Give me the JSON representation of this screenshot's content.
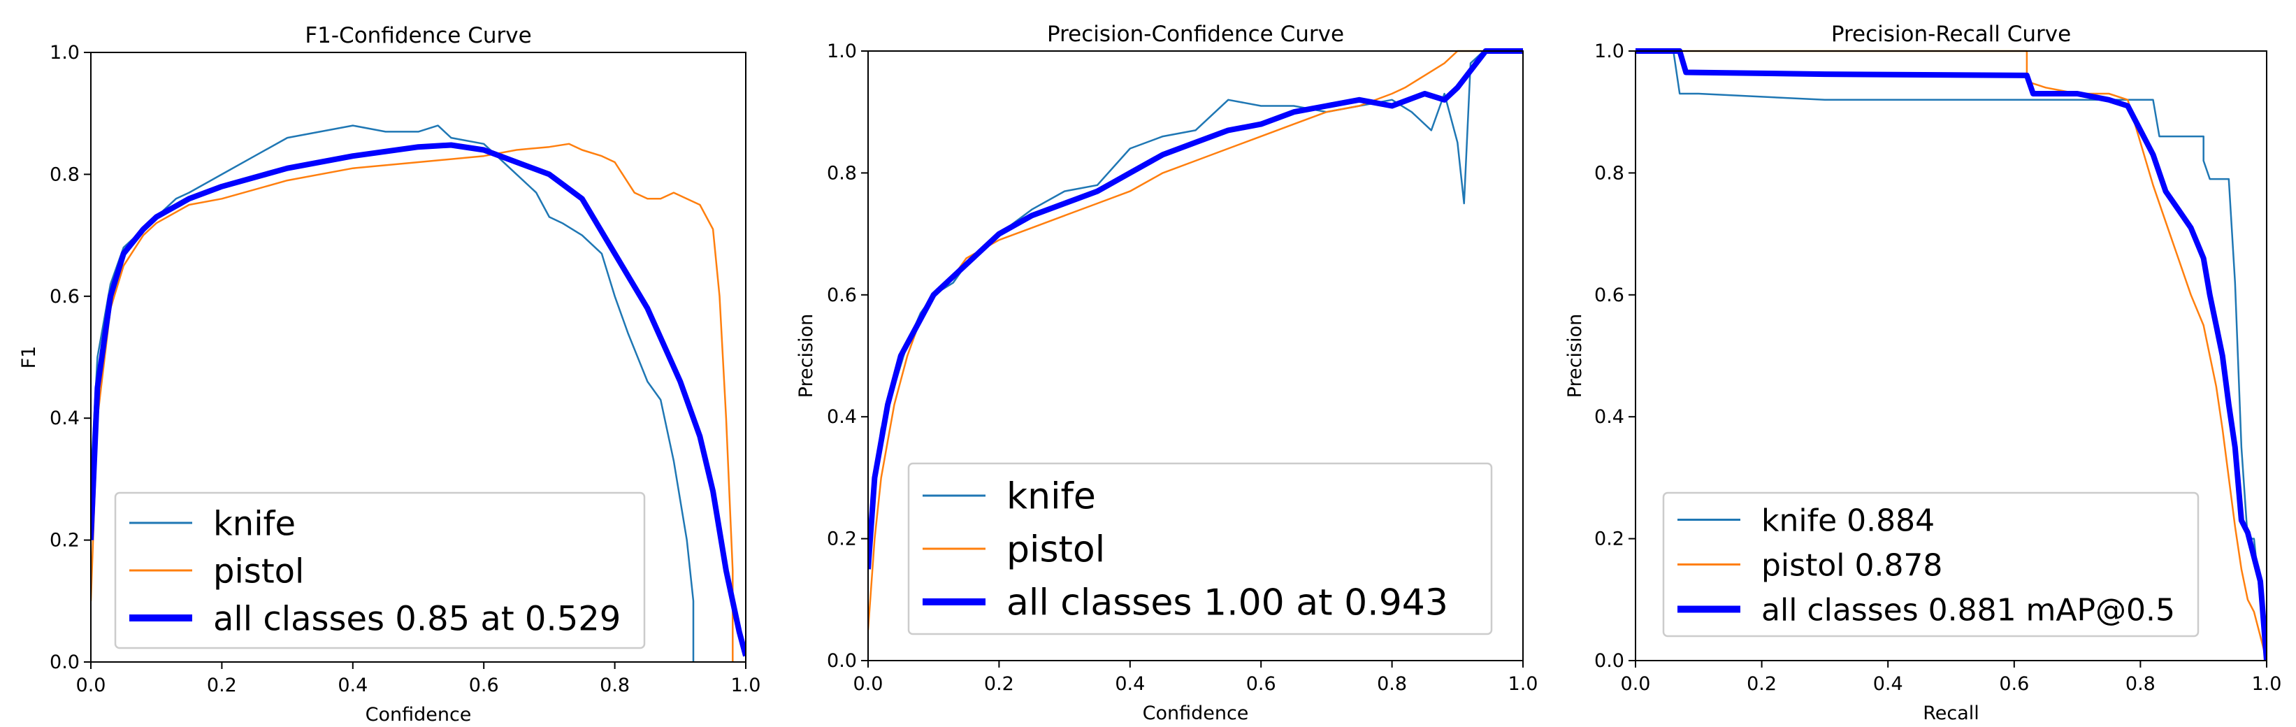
{
  "colors": {
    "knife": "#1f77b4",
    "pistol": "#ff7f0e",
    "all": "#0000ff",
    "axes": "#000000",
    "legend_border": "#cccccc"
  },
  "chart_data": [
    {
      "type": "line",
      "title": "F1-Confidence Curve",
      "xlabel": "Confidence",
      "ylabel": "F1",
      "xlim": [
        0,
        1
      ],
      "ylim": [
        0,
        1
      ],
      "xticks": [
        "0.0",
        "0.2",
        "0.4",
        "0.6",
        "0.8",
        "1.0"
      ],
      "yticks": [
        "0.0",
        "0.2",
        "0.4",
        "0.6",
        "0.8",
        "1.0"
      ],
      "grid": false,
      "legend_position": "lower-left",
      "series": [
        {
          "name": "knife",
          "color_key": "knife",
          "width": "thin",
          "x": [
            0,
            0.01,
            0.03,
            0.05,
            0.08,
            0.1,
            0.13,
            0.15,
            0.2,
            0.25,
            0.3,
            0.35,
            0.4,
            0.45,
            0.5,
            0.53,
            0.55,
            0.6,
            0.65,
            0.68,
            0.7,
            0.72,
            0.75,
            0.78,
            0.8,
            0.82,
            0.85,
            0.87,
            0.89,
            0.91,
            0.92,
            0.92
          ],
          "y": [
            0.3,
            0.5,
            0.62,
            0.68,
            0.71,
            0.73,
            0.76,
            0.77,
            0.8,
            0.83,
            0.86,
            0.87,
            0.88,
            0.87,
            0.87,
            0.88,
            0.86,
            0.85,
            0.8,
            0.77,
            0.73,
            0.72,
            0.7,
            0.67,
            0.6,
            0.54,
            0.46,
            0.43,
            0.33,
            0.2,
            0.1,
            0.0
          ]
        },
        {
          "name": "pistol",
          "color_key": "pistol",
          "width": "thin",
          "x": [
            0,
            0.01,
            0.03,
            0.05,
            0.08,
            0.1,
            0.15,
            0.2,
            0.3,
            0.4,
            0.5,
            0.6,
            0.65,
            0.7,
            0.73,
            0.75,
            0.78,
            0.8,
            0.83,
            0.85,
            0.87,
            0.89,
            0.93,
            0.95,
            0.96,
            0.97,
            0.98,
            0.98
          ],
          "y": [
            0.1,
            0.4,
            0.58,
            0.65,
            0.7,
            0.72,
            0.75,
            0.76,
            0.79,
            0.81,
            0.82,
            0.83,
            0.84,
            0.845,
            0.85,
            0.84,
            0.83,
            0.82,
            0.77,
            0.76,
            0.76,
            0.77,
            0.75,
            0.71,
            0.6,
            0.4,
            0.15,
            0.0
          ]
        },
        {
          "name": "all classes 0.85 at 0.529",
          "color_key": "all",
          "width": "thick",
          "x": [
            0,
            0.01,
            0.03,
            0.05,
            0.08,
            0.1,
            0.15,
            0.2,
            0.3,
            0.4,
            0.5,
            0.55,
            0.6,
            0.65,
            0.7,
            0.75,
            0.8,
            0.85,
            0.9,
            0.93,
            0.95,
            0.97,
            0.99,
            1.0
          ],
          "y": [
            0.2,
            0.45,
            0.6,
            0.67,
            0.71,
            0.73,
            0.76,
            0.78,
            0.81,
            0.83,
            0.845,
            0.848,
            0.84,
            0.82,
            0.8,
            0.76,
            0.67,
            0.58,
            0.46,
            0.37,
            0.28,
            0.15,
            0.05,
            0.01
          ]
        }
      ]
    },
    {
      "type": "line",
      "title": "Precision-Confidence Curve",
      "xlabel": "Confidence",
      "ylabel": "Precision",
      "xlim": [
        0,
        1
      ],
      "ylim": [
        0,
        1
      ],
      "xticks": [
        "0.0",
        "0.2",
        "0.4",
        "0.6",
        "0.8",
        "1.0"
      ],
      "yticks": [
        "0.0",
        "0.2",
        "0.4",
        "0.6",
        "0.8",
        "1.0"
      ],
      "grid": false,
      "legend_position": "lower-left",
      "series": [
        {
          "name": "knife",
          "color_key": "knife",
          "width": "thin",
          "x": [
            0,
            0.01,
            0.02,
            0.04,
            0.06,
            0.08,
            0.1,
            0.13,
            0.15,
            0.2,
            0.25,
            0.3,
            0.35,
            0.4,
            0.45,
            0.5,
            0.55,
            0.6,
            0.65,
            0.7,
            0.75,
            0.8,
            0.83,
            0.86,
            0.88,
            0.9,
            0.91,
            0.92,
            0.94,
            1.0
          ],
          "y": [
            0.15,
            0.3,
            0.38,
            0.45,
            0.52,
            0.57,
            0.6,
            0.62,
            0.65,
            0.7,
            0.74,
            0.77,
            0.78,
            0.84,
            0.86,
            0.87,
            0.92,
            0.91,
            0.91,
            0.9,
            0.91,
            0.92,
            0.9,
            0.87,
            0.93,
            0.85,
            0.75,
            0.98,
            1.0,
            1.0
          ]
        },
        {
          "name": "pistol",
          "color_key": "pistol",
          "width": "thin",
          "x": [
            0,
            0.01,
            0.02,
            0.04,
            0.06,
            0.08,
            0.1,
            0.13,
            0.15,
            0.2,
            0.25,
            0.3,
            0.35,
            0.4,
            0.45,
            0.5,
            0.55,
            0.6,
            0.65,
            0.7,
            0.75,
            0.8,
            0.82,
            0.85,
            0.88,
            0.9,
            0.92,
            1.0
          ],
          "y": [
            0.05,
            0.2,
            0.3,
            0.42,
            0.5,
            0.56,
            0.6,
            0.63,
            0.66,
            0.69,
            0.71,
            0.73,
            0.75,
            0.77,
            0.8,
            0.82,
            0.84,
            0.86,
            0.88,
            0.9,
            0.91,
            0.93,
            0.94,
            0.96,
            0.98,
            1.0,
            1.0,
            1.0
          ]
        },
        {
          "name": "all classes 1.00 at 0.943",
          "color_key": "all",
          "width": "thick",
          "x": [
            0,
            0.01,
            0.03,
            0.05,
            0.08,
            0.1,
            0.15,
            0.2,
            0.25,
            0.3,
            0.35,
            0.4,
            0.45,
            0.5,
            0.55,
            0.6,
            0.65,
            0.7,
            0.75,
            0.8,
            0.85,
            0.88,
            0.9,
            0.943,
            1.0
          ],
          "y": [
            0.15,
            0.3,
            0.42,
            0.5,
            0.56,
            0.6,
            0.65,
            0.7,
            0.73,
            0.75,
            0.77,
            0.8,
            0.83,
            0.85,
            0.87,
            0.88,
            0.9,
            0.91,
            0.92,
            0.91,
            0.93,
            0.92,
            0.94,
            1.0,
            1.0
          ]
        }
      ]
    },
    {
      "type": "line",
      "title": "Precision-Recall Curve",
      "xlabel": "Recall",
      "ylabel": "Precision",
      "xlim": [
        0,
        1
      ],
      "ylim": [
        0,
        1
      ],
      "xticks": [
        "0.0",
        "0.2",
        "0.4",
        "0.6",
        "0.8",
        "1.0"
      ],
      "yticks": [
        "0.0",
        "0.2",
        "0.4",
        "0.6",
        "0.8",
        "1.0"
      ],
      "grid": false,
      "legend_position": "lower-left",
      "series": [
        {
          "name": "knife 0.884",
          "color_key": "knife",
          "width": "thin",
          "x": [
            0,
            0.06,
            0.07,
            0.1,
            0.3,
            0.5,
            0.6,
            0.7,
            0.8,
            0.82,
            0.83,
            0.86,
            0.9,
            0.9,
            0.91,
            0.92,
            0.94,
            0.95,
            0.96,
            0.97,
            0.98,
            1.0
          ],
          "y": [
            1.0,
            1.0,
            0.93,
            0.93,
            0.92,
            0.92,
            0.92,
            0.92,
            0.92,
            0.92,
            0.86,
            0.86,
            0.86,
            0.82,
            0.79,
            0.79,
            0.79,
            0.62,
            0.35,
            0.2,
            0.2,
            0.0
          ]
        },
        {
          "name": "pistol 0.878",
          "color_key": "pistol",
          "width": "thin",
          "x": [
            0,
            0.3,
            0.6,
            0.62,
            0.62,
            0.65,
            0.7,
            0.75,
            0.78,
            0.8,
            0.82,
            0.84,
            0.86,
            0.88,
            0.9,
            0.91,
            0.92,
            0.93,
            0.94,
            0.95,
            0.96,
            0.97,
            0.98,
            0.99,
            1.0
          ],
          "y": [
            1.0,
            1.0,
            1.0,
            1.0,
            0.95,
            0.94,
            0.93,
            0.93,
            0.92,
            0.85,
            0.78,
            0.72,
            0.66,
            0.6,
            0.55,
            0.5,
            0.45,
            0.38,
            0.3,
            0.22,
            0.15,
            0.1,
            0.08,
            0.04,
            0.0
          ]
        },
        {
          "name": "all classes 0.881 mAP@0.5",
          "color_key": "all",
          "width": "thick",
          "x": [
            0,
            0.07,
            0.08,
            0.3,
            0.62,
            0.63,
            0.7,
            0.75,
            0.78,
            0.8,
            0.82,
            0.84,
            0.86,
            0.88,
            0.9,
            0.91,
            0.92,
            0.93,
            0.94,
            0.95,
            0.96,
            0.97,
            0.98,
            0.99,
            1.0
          ],
          "y": [
            1.0,
            1.0,
            0.965,
            0.962,
            0.96,
            0.93,
            0.93,
            0.92,
            0.91,
            0.87,
            0.83,
            0.77,
            0.74,
            0.71,
            0.66,
            0.6,
            0.55,
            0.5,
            0.42,
            0.35,
            0.23,
            0.21,
            0.17,
            0.13,
            0.0
          ]
        }
      ]
    }
  ]
}
